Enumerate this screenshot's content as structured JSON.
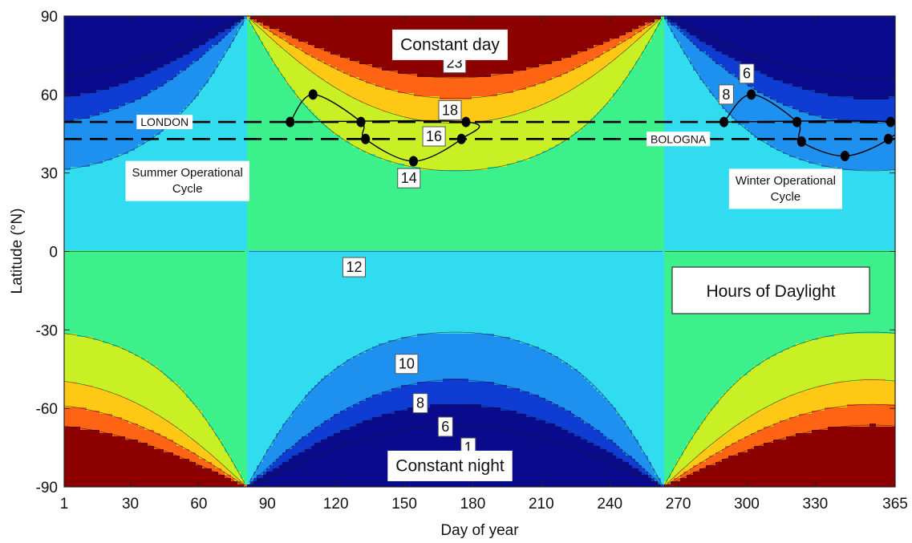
{
  "chart_data": {
    "type": "heatmap",
    "title": "Hours of Daylight",
    "xlabel": "Day of year",
    "ylabel": "Latitude (°N)",
    "xlim": [
      1,
      365
    ],
    "ylim": [
      -90,
      90
    ],
    "xticks": [
      1,
      30,
      60,
      90,
      120,
      150,
      180,
      210,
      240,
      270,
      300,
      330,
      365
    ],
    "yticks": [
      90,
      60,
      30,
      0,
      -30,
      -60,
      -90
    ],
    "contour_levels": [
      1,
      6,
      8,
      10,
      12,
      14,
      16,
      18,
      23
    ],
    "colors": {
      "below_1": "#0a0a8c",
      "1_6": "#0a0a8c",
      "6_8": "#0f3cd2",
      "8_10": "#1e90f0",
      "10_12": "#32dcf0",
      "12_14": "#3cf08c",
      "14_16": "#c8f024",
      "16_18": "#ffc814",
      "18_23": "#ff6414",
      "above_23": "#8c0000"
    },
    "contour_labels": [
      {
        "text": "23",
        "day": 172,
        "lat": 72
      },
      {
        "text": "18",
        "day": 170,
        "lat": 54
      },
      {
        "text": "16",
        "day": 163,
        "lat": 44
      },
      {
        "text": "14",
        "day": 152,
        "lat": 28
      },
      {
        "text": "12",
        "day": 128,
        "lat": -6
      },
      {
        "text": "10",
        "day": 151,
        "lat": -43
      },
      {
        "text": "8",
        "day": 157,
        "lat": -58
      },
      {
        "text": "6",
        "day": 168,
        "lat": -67
      },
      {
        "text": "1",
        "day": 178,
        "lat": -75
      },
      {
        "text": "8",
        "day": 291,
        "lat": 60
      },
      {
        "text": "6",
        "day": 300,
        "lat": 68
      }
    ],
    "region_labels": [
      {
        "text": "Constant day",
        "day": 170,
        "lat": 79
      },
      {
        "text": "Constant night",
        "day": 170,
        "lat": -82
      }
    ],
    "cities": [
      {
        "name": "LONDON",
        "lat": 49.5,
        "label_day": 45
      },
      {
        "name": "BOLOGNA",
        "lat": 43,
        "label_day": 270
      }
    ],
    "cycles": [
      {
        "name": "Summer Operational Cycle",
        "label_lines": [
          "Summer  Operational",
          "Cycle"
        ],
        "label_day": 55,
        "label_lat": 30,
        "points": [
          {
            "day": 100,
            "lat": 49.5
          },
          {
            "day": 110,
            "lat": 60
          },
          {
            "day": 131,
            "lat": 49.5
          },
          {
            "day": 133,
            "lat": 43
          },
          {
            "day": 154,
            "lat": 34.5
          },
          {
            "day": 175,
            "lat": 43
          },
          {
            "day": 177,
            "lat": 49.5
          }
        ]
      },
      {
        "name": "Winter Operational Cycle",
        "label_lines": [
          "Winter Operational",
          "Cycle"
        ],
        "label_day": 317,
        "label_lat": 27,
        "points": [
          {
            "day": 290,
            "lat": 49.5
          },
          {
            "day": 302,
            "lat": 60
          },
          {
            "day": 322,
            "lat": 49.5
          },
          {
            "day": 324,
            "lat": 42
          },
          {
            "day": 343,
            "lat": 36.5
          },
          {
            "day": 362,
            "lat": 43
          },
          {
            "day": 363,
            "lat": 49.5
          }
        ]
      }
    ],
    "legend": "none",
    "grid": false
  }
}
